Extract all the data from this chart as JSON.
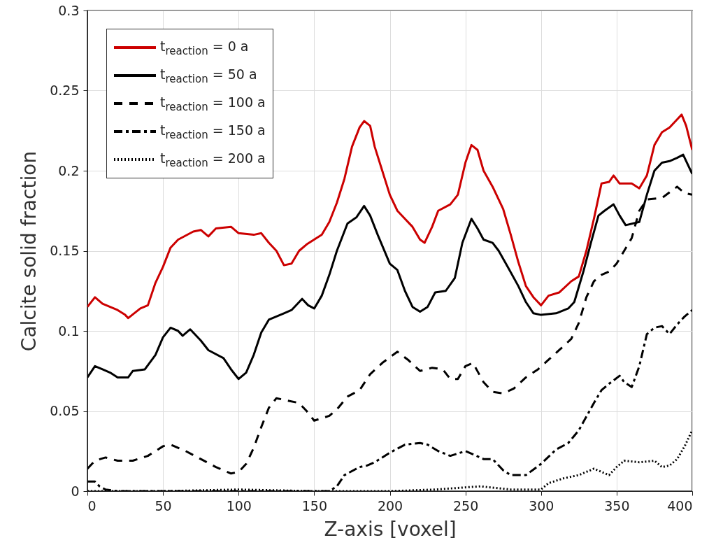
{
  "chart_data": {
    "type": "line",
    "xlabel": "Z-axis [voxel]",
    "ylabel": "Calcite solid fraction",
    "xlim": [
      0,
      400
    ],
    "xticks": [
      0,
      50,
      100,
      150,
      200,
      250,
      300,
      350,
      400
    ],
    "ylim": [
      0,
      0.3
    ],
    "yticks": [
      0,
      0.05,
      0.1,
      0.15,
      0.2,
      0.25,
      0.3
    ],
    "grid": true,
    "legend": "top left",
    "series": [
      {
        "name": "t$_{reaction}$ = 0 a",
        "color": "#cc0000",
        "line_style": "solid",
        "x": [
          0,
          5,
          10,
          20,
          25,
          27,
          35,
          40,
          45,
          50,
          55,
          60,
          70,
          75,
          80,
          85,
          95,
          100,
          110,
          115,
          120,
          125,
          130,
          135,
          140,
          145,
          155,
          160,
          165,
          170,
          175,
          180,
          183,
          187,
          190,
          195,
          200,
          205,
          210,
          215,
          220,
          223,
          228,
          232,
          240,
          245,
          250,
          254,
          258,
          262,
          268,
          275,
          280,
          285,
          290,
          295,
          300,
          305,
          312,
          320,
          325,
          330,
          335,
          340,
          345,
          348,
          352,
          360,
          365,
          370,
          375,
          380,
          385,
          390,
          393,
          396,
          400
        ],
        "values": [
          0.115,
          0.121,
          0.117,
          0.113,
          0.11,
          0.108,
          0.114,
          0.116,
          0.13,
          0.14,
          0.152,
          0.157,
          0.162,
          0.163,
          0.159,
          0.164,
          0.165,
          0.161,
          0.16,
          0.161,
          0.155,
          0.15,
          0.141,
          0.142,
          0.15,
          0.154,
          0.16,
          0.168,
          0.18,
          0.195,
          0.215,
          0.227,
          0.231,
          0.228,
          0.215,
          0.2,
          0.185,
          0.175,
          0.17,
          0.165,
          0.157,
          0.155,
          0.165,
          0.175,
          0.179,
          0.185,
          0.205,
          0.216,
          0.213,
          0.2,
          0.19,
          0.176,
          0.16,
          0.143,
          0.128,
          0.121,
          0.116,
          0.122,
          0.124,
          0.131,
          0.134,
          0.15,
          0.17,
          0.192,
          0.193,
          0.197,
          0.192,
          0.192,
          0.189,
          0.197,
          0.216,
          0.224,
          0.227,
          0.232,
          0.235,
          0.228,
          0.213
        ]
      },
      {
        "name": "t$_{reaction}$ = 50 a",
        "color": "#000000",
        "line_style": "solid",
        "x": [
          0,
          5,
          10,
          15,
          20,
          27,
          30,
          38,
          45,
          50,
          55,
          60,
          63,
          68,
          75,
          80,
          90,
          95,
          100,
          105,
          110,
          115,
          120,
          130,
          135,
          142,
          146,
          150,
          155,
          160,
          165,
          172,
          178,
          183,
          187,
          192,
          200,
          205,
          210,
          215,
          220,
          225,
          230,
          237,
          243,
          248,
          254,
          258,
          262,
          268,
          272,
          278,
          285,
          290,
          295,
          300,
          310,
          318,
          322,
          328,
          333,
          338,
          342,
          348,
          352,
          356,
          365,
          370,
          375,
          380,
          385,
          390,
          394,
          397,
          400
        ],
        "values": [
          0.071,
          0.078,
          0.076,
          0.074,
          0.071,
          0.071,
          0.075,
          0.076,
          0.085,
          0.096,
          0.102,
          0.1,
          0.097,
          0.101,
          0.094,
          0.088,
          0.083,
          0.076,
          0.07,
          0.074,
          0.085,
          0.099,
          0.107,
          0.111,
          0.113,
          0.12,
          0.116,
          0.114,
          0.122,
          0.135,
          0.15,
          0.167,
          0.171,
          0.178,
          0.172,
          0.16,
          0.142,
          0.138,
          0.125,
          0.115,
          0.112,
          0.115,
          0.124,
          0.125,
          0.133,
          0.155,
          0.17,
          0.164,
          0.157,
          0.155,
          0.15,
          0.14,
          0.128,
          0.118,
          0.111,
          0.11,
          0.111,
          0.114,
          0.118,
          0.137,
          0.155,
          0.172,
          0.175,
          0.179,
          0.172,
          0.166,
          0.168,
          0.185,
          0.2,
          0.205,
          0.206,
          0.208,
          0.21,
          0.204,
          0.198
        ]
      },
      {
        "name": "t$_{reaction}$ = 100 a",
        "color": "#000000",
        "line_style": "dashed",
        "x": [
          0,
          5,
          12,
          20,
          30,
          40,
          50,
          55,
          65,
          75,
          85,
          95,
          100,
          105,
          110,
          115,
          120,
          125,
          130,
          140,
          145,
          150,
          160,
          165,
          172,
          180,
          187,
          195,
          205,
          212,
          220,
          228,
          235,
          240,
          245,
          250,
          255,
          262,
          268,
          275,
          282,
          290,
          298,
          305,
          312,
          320,
          325,
          330,
          335,
          340,
          345,
          350,
          355,
          360,
          365,
          370,
          380,
          390,
          395,
          400
        ],
        "values": [
          0.014,
          0.019,
          0.021,
          0.019,
          0.019,
          0.022,
          0.028,
          0.029,
          0.025,
          0.02,
          0.015,
          0.011,
          0.012,
          0.017,
          0.027,
          0.04,
          0.052,
          0.058,
          0.057,
          0.055,
          0.05,
          0.044,
          0.047,
          0.051,
          0.059,
          0.063,
          0.073,
          0.08,
          0.087,
          0.082,
          0.075,
          0.077,
          0.076,
          0.07,
          0.07,
          0.078,
          0.08,
          0.068,
          0.062,
          0.061,
          0.064,
          0.071,
          0.076,
          0.082,
          0.088,
          0.095,
          0.105,
          0.121,
          0.131,
          0.135,
          0.137,
          0.142,
          0.15,
          0.158,
          0.175,
          0.182,
          0.183,
          0.19,
          0.186,
          0.185
        ]
      },
      {
        "name": "t$_{reaction}$ = 150 a",
        "color": "#000000",
        "line_style": "dashdot",
        "x": [
          0,
          5,
          8,
          12,
          20,
          40,
          80,
          120,
          160,
          165,
          170,
          180,
          185,
          190,
          200,
          210,
          220,
          225,
          232,
          240,
          250,
          255,
          262,
          268,
          275,
          280,
          290,
          300,
          310,
          318,
          325,
          335,
          340,
          345,
          352,
          355,
          360,
          365,
          370,
          375,
          380,
          385,
          390,
          395,
          400
        ],
        "values": [
          0.006,
          0.006,
          0.003,
          0.001,
          0,
          0,
          0,
          0,
          0,
          0.003,
          0.01,
          0.015,
          0.016,
          0.018,
          0.024,
          0.029,
          0.03,
          0.029,
          0.025,
          0.022,
          0.025,
          0.023,
          0.02,
          0.02,
          0.013,
          0.01,
          0.01,
          0.017,
          0.026,
          0.03,
          0.038,
          0.055,
          0.063,
          0.067,
          0.072,
          0.068,
          0.065,
          0.078,
          0.098,
          0.102,
          0.103,
          0.098,
          0.104,
          0.109,
          0.113
        ]
      },
      {
        "name": "t$_{reaction}$ = 200 a",
        "color": "#000000",
        "line_style": "dotted",
        "x": [
          0,
          50,
          100,
          150,
          200,
          230,
          260,
          270,
          280,
          300,
          305,
          315,
          325,
          335,
          340,
          345,
          350,
          355,
          365,
          375,
          380,
          385,
          390,
          395,
          400
        ],
        "values": [
          0,
          0,
          0.001,
          0,
          0,
          0.001,
          0.003,
          0.002,
          0.001,
          0.001,
          0.005,
          0.008,
          0.01,
          0.014,
          0.012,
          0.01,
          0.015,
          0.019,
          0.018,
          0.019,
          0.015,
          0.016,
          0.02,
          0.028,
          0.038
        ]
      }
    ]
  }
}
